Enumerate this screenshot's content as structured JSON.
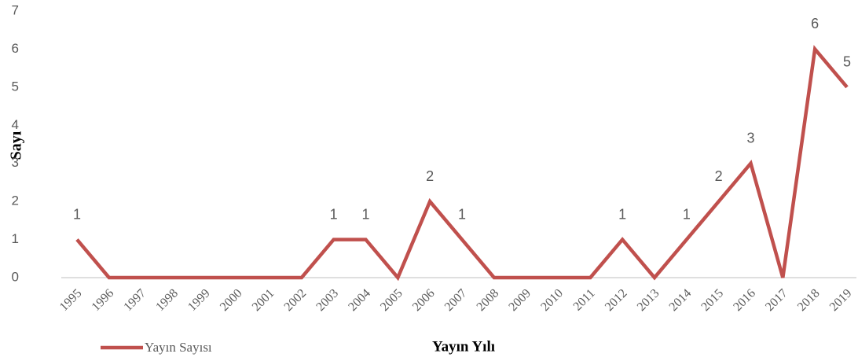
{
  "chart_data": {
    "type": "line",
    "x_label": "Yayın Yılı",
    "y_label": "Sayı",
    "categories": [
      "1995",
      "1996",
      "1997",
      "1998",
      "1999",
      "2000",
      "2001",
      "2002",
      "2003",
      "2004",
      "2005",
      "2006",
      "2007",
      "2008",
      "2009",
      "2010",
      "2011",
      "2012",
      "2013",
      "2014",
      "2015",
      "2016",
      "2017",
      "2018",
      "2019"
    ],
    "series": [
      {
        "name": "Yayın Sayısı",
        "color": "#c0504d",
        "values": [
          1,
          0,
          0,
          0,
          0,
          0,
          0,
          0,
          1,
          1,
          0,
          2,
          1,
          0,
          0,
          0,
          0,
          1,
          0,
          1,
          2,
          3,
          0,
          6,
          5
        ]
      }
    ],
    "ylim": [
      0,
      7
    ],
    "yticks": [
      0,
      1,
      2,
      3,
      4,
      5,
      6,
      7
    ],
    "grid": false,
    "legend": "bottom-left"
  }
}
